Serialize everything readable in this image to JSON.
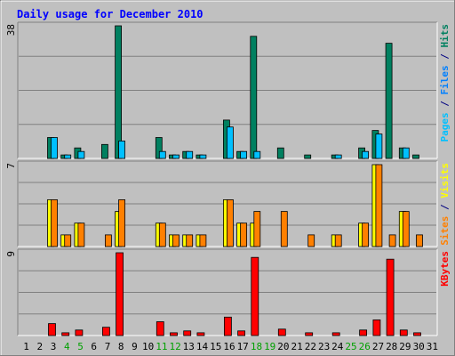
{
  "chart_data": {
    "type": "bar",
    "title": "Daily usage for December 2010",
    "days": [
      1,
      2,
      3,
      4,
      5,
      6,
      7,
      8,
      9,
      10,
      11,
      12,
      13,
      14,
      15,
      16,
      17,
      18,
      19,
      20,
      21,
      22,
      23,
      24,
      25,
      26,
      27,
      28,
      29,
      30,
      31
    ],
    "weekend_days": [
      4,
      5,
      11,
      12,
      18,
      19,
      25,
      26
    ],
    "panels": [
      {
        "id": "hits-files-pages",
        "ylabel_parts": [
          {
            "text": "Pages",
            "color": "#00c0ff"
          },
          {
            "text": " / ",
            "color": "#000080"
          },
          {
            "text": "Files",
            "color": "#0080ff"
          },
          {
            "text": " / ",
            "color": "#000080"
          },
          {
            "text": "Hits",
            "color": "#008060"
          }
        ],
        "max_label": "38",
        "ylim": [
          0,
          38
        ],
        "series": [
          {
            "name": "Hits",
            "color": "#008060",
            "values": [
              0,
              0,
              6,
              1,
              3,
              0,
              4,
              38,
              0,
              0,
              6,
              1,
              2,
              1,
              0,
              11,
              2,
              35,
              0,
              3,
              0,
              1,
              0,
              1,
              0,
              3,
              8,
              33,
              3,
              1,
              0
            ]
          },
          {
            "name": "Files",
            "color": "#00c0ff",
            "values": [
              0,
              0,
              6,
              1,
              2,
              0,
              0,
              5,
              0,
              0,
              2,
              1,
              2,
              1,
              0,
              9,
              2,
              2,
              0,
              0,
              0,
              0,
              0,
              1,
              0,
              2,
              7,
              0,
              3,
              0,
              0
            ]
          }
        ]
      },
      {
        "id": "visits-sites",
        "ylabel_parts": [
          {
            "text": "Sites",
            "color": "#ff8000"
          },
          {
            "text": " / ",
            "color": "#000080"
          },
          {
            "text": "Visits",
            "color": "#ffff00"
          }
        ],
        "max_label": "7",
        "ylim": [
          0,
          7
        ],
        "series": [
          {
            "name": "Visits",
            "color": "#ffff00",
            "values": [
              0,
              0,
              4,
              1,
              2,
              0,
              0,
              3,
              0,
              0,
              2,
              1,
              1,
              1,
              0,
              4,
              2,
              2,
              0,
              0,
              0,
              0,
              0,
              1,
              0,
              2,
              7,
              0,
              3,
              0,
              0
            ]
          },
          {
            "name": "Sites",
            "color": "#ff8000",
            "values": [
              0,
              0,
              4,
              1,
              2,
              0,
              1,
              4,
              0,
              0,
              2,
              1,
              1,
              1,
              0,
              4,
              2,
              3,
              0,
              3,
              0,
              1,
              0,
              1,
              0,
              2,
              7,
              1,
              3,
              1,
              0
            ]
          }
        ]
      },
      {
        "id": "kbytes",
        "ylabel_parts": [
          {
            "text": "KBytes",
            "color": "#ff0000"
          }
        ],
        "max_label": "9",
        "ylim": [
          0,
          9
        ],
        "series": [
          {
            "name": "KBytes",
            "color": "#ff0000",
            "values": [
              0,
              0,
              1.3,
              0.3,
              0.6,
              0,
              0.9,
              9,
              0,
              0,
              1.5,
              0.3,
              0.5,
              0.3,
              0,
              2,
              0.5,
              8.5,
              0,
              0.7,
              0,
              0.3,
              0,
              0.3,
              0,
              0.6,
              1.7,
              8.3,
              0.6,
              0.3,
              0
            ]
          }
        ]
      }
    ],
    "colors": {
      "background": "#c0c0c0",
      "title": "#0000ff",
      "weekday_label": "#000000",
      "weekend_label": "#00a000",
      "gridline": "#808080"
    }
  }
}
